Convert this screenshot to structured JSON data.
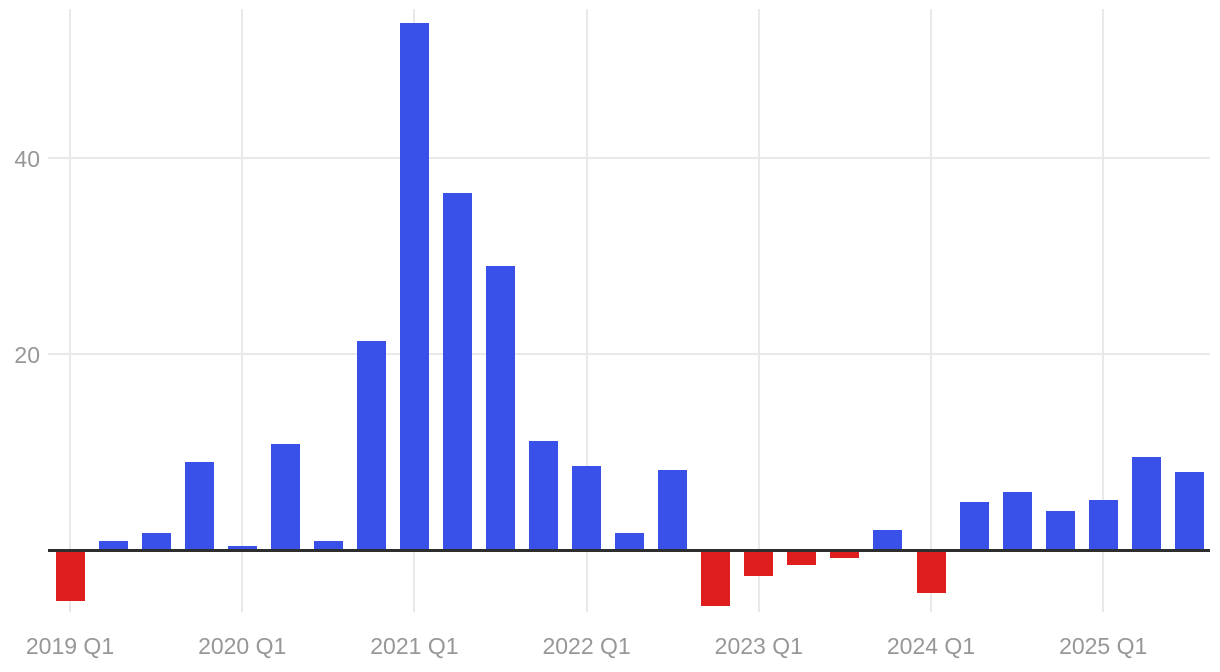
{
  "chart_data": {
    "type": "bar",
    "title": "",
    "xlabel": "",
    "ylabel": "",
    "categories": [
      "2019 Q1",
      "2019 Q2",
      "2019 Q3",
      "2019 Q4",
      "2020 Q1",
      "2020 Q2",
      "2020 Q3",
      "2020 Q4",
      "2021 Q1",
      "2021 Q2",
      "2021 Q3",
      "2021 Q4",
      "2022 Q1",
      "2022 Q2",
      "2022 Q3",
      "2022 Q4",
      "2023 Q1",
      "2023 Q2",
      "2023 Q3",
      "2023 Q4",
      "2024 Q1",
      "2024 Q2",
      "2024 Q3",
      "2024 Q4",
      "2025 Q1",
      "2025 Q2",
      "2025 Q3"
    ],
    "values": [
      -5.2,
      1.0,
      1.8,
      9.0,
      0.5,
      10.9,
      1.0,
      21.4,
      53.8,
      36.5,
      29.0,
      11.2,
      8.6,
      1.8,
      8.2,
      -5.7,
      -2.6,
      -1.5,
      -0.8,
      2.1,
      -4.3,
      4.9,
      6.0,
      4.0,
      5.2,
      9.5,
      8.0
    ],
    "x_tick_labels": [
      "2019 Q1",
      "2020 Q1",
      "2021 Q1",
      "2022 Q1",
      "2023 Q1",
      "2024 Q1",
      "2025 Q1"
    ],
    "x_tick_every": 4,
    "y_tick_labels": [
      "20",
      "40"
    ],
    "y_tick_values": [
      20,
      40
    ],
    "ylim": [
      -6.4,
      55.1
    ],
    "grid": true,
    "legend": "none",
    "positive_color": "#3a51e9",
    "negative_color": "#de1d1d",
    "axis_line_color": "#2e2e2e",
    "grid_color": "#e9e9e9",
    "tick_label_color": "#979797"
  }
}
